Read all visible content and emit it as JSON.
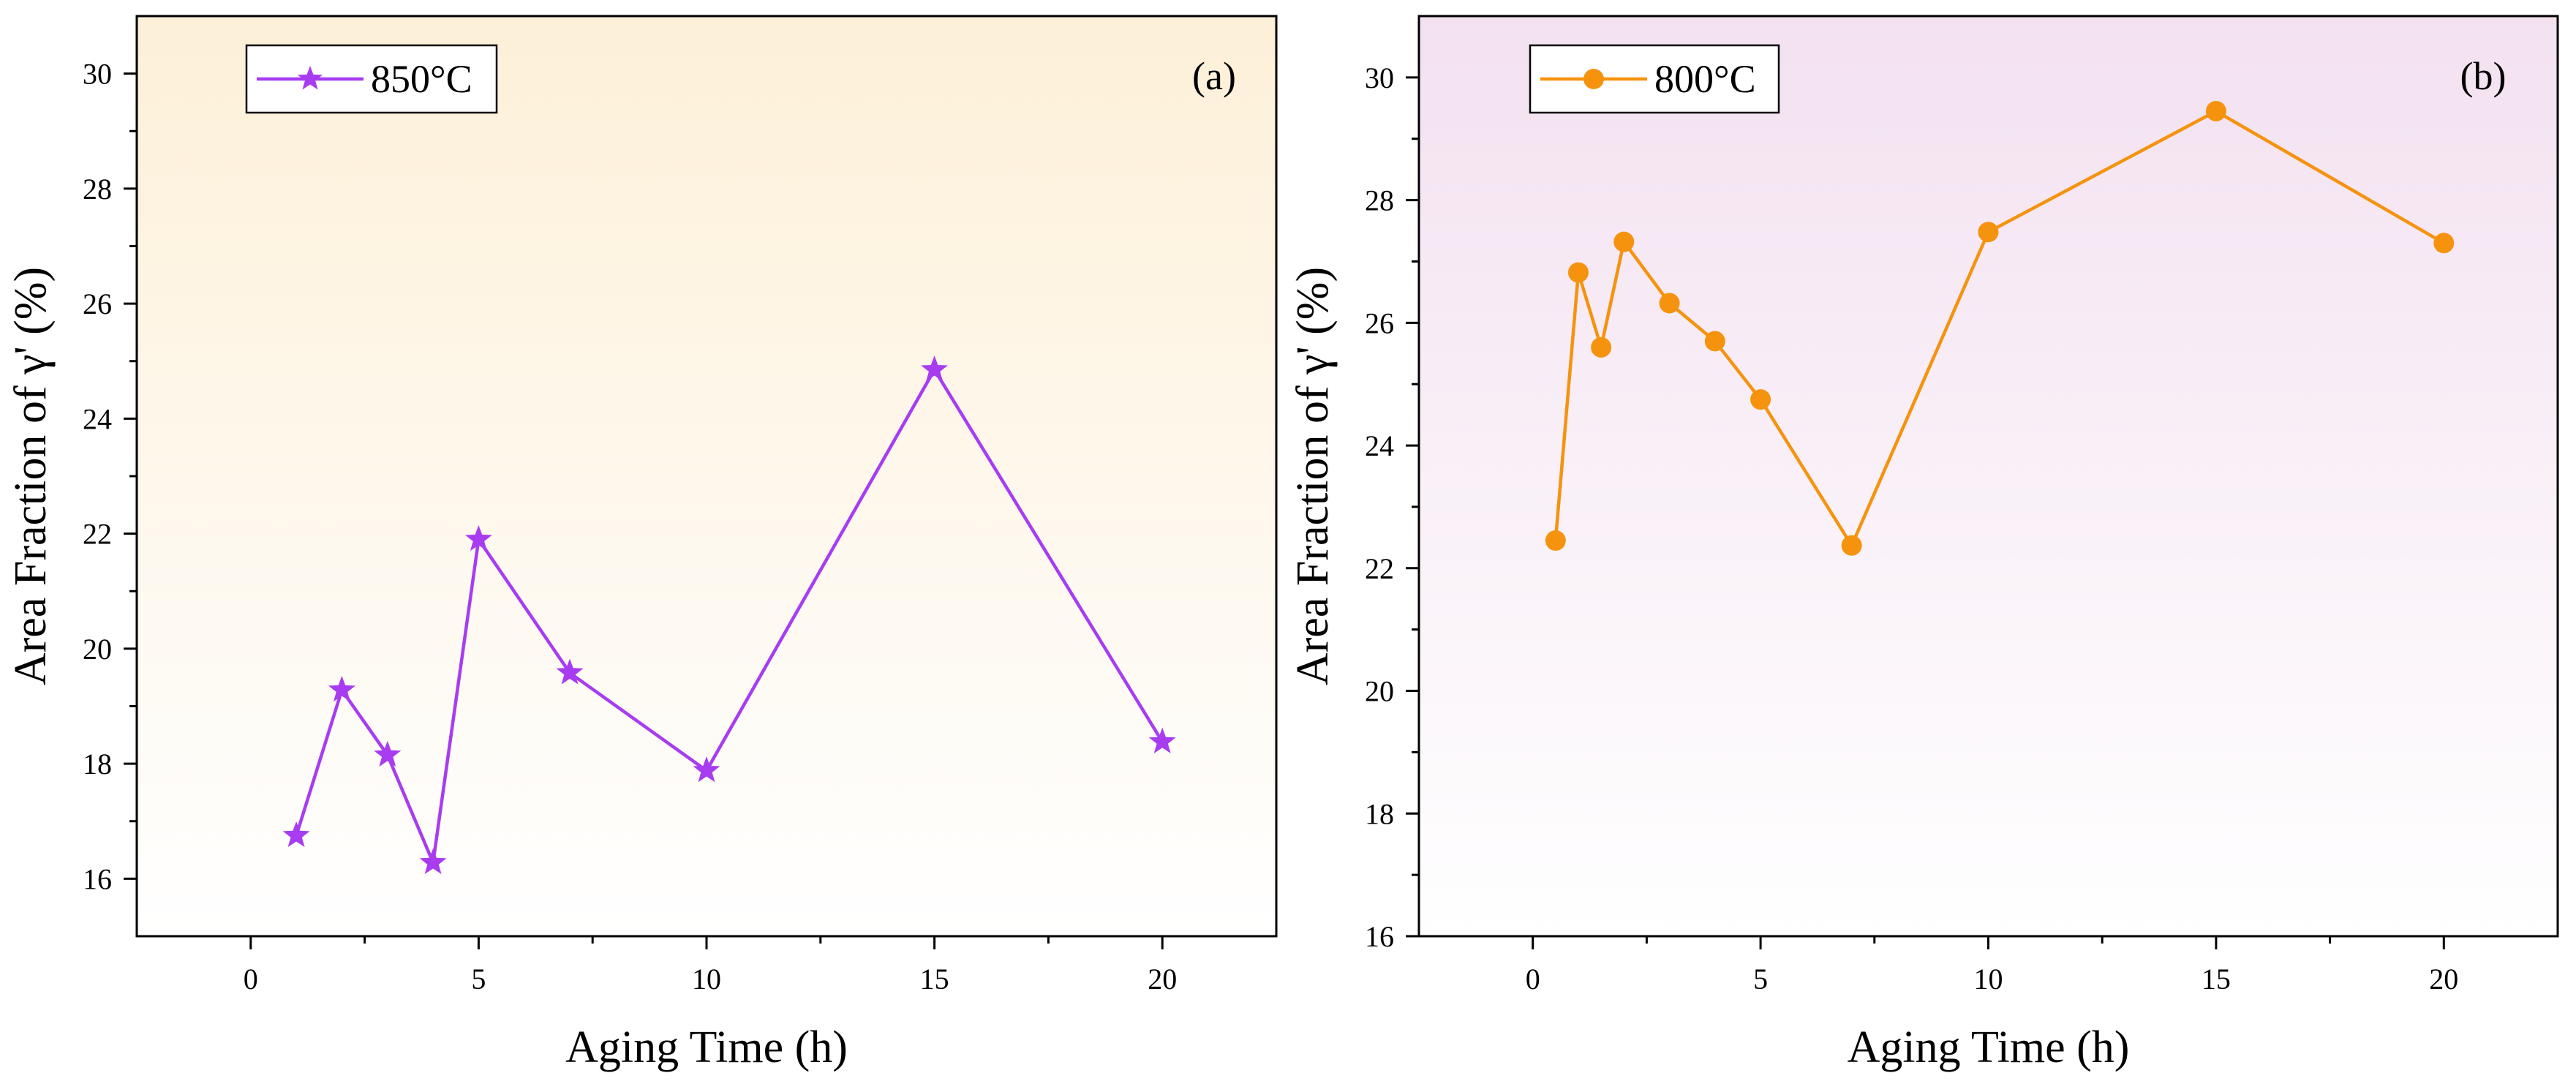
{
  "chart_data": [
    {
      "type": "line",
      "panel_label": "(a)",
      "title": "",
      "xlabel": "Aging Time (h)",
      "ylabel": "Area Fraction of γ' (%)",
      "xlim": [
        -2.5,
        22.5
      ],
      "ylim": [
        15,
        31
      ],
      "xticks": [
        0,
        5,
        10,
        15,
        20
      ],
      "yticks": [
        16,
        18,
        20,
        22,
        24,
        26,
        28,
        30
      ],
      "legend_position": "top-left",
      "background_gradient": [
        "#fdf0d8",
        "#ffffff"
      ],
      "series": [
        {
          "name": "850°C",
          "color": "#a83cf0",
          "marker": "star",
          "x": [
            1,
            2,
            3,
            4,
            5,
            7,
            10,
            15,
            20
          ],
          "y": [
            16.75,
            19.28,
            18.15,
            16.28,
            21.9,
            19.58,
            17.88,
            24.85,
            18.38
          ]
        }
      ]
    },
    {
      "type": "line",
      "panel_label": "(b)",
      "title": "",
      "xlabel": "Aging Time (h)",
      "ylabel": "Area Fraction of γ' (%)",
      "xlim": [
        -2.5,
        22.5
      ],
      "ylim": [
        16,
        31
      ],
      "xticks": [
        0,
        5,
        10,
        15,
        20
      ],
      "yticks": [
        16,
        18,
        20,
        22,
        24,
        26,
        28,
        30
      ],
      "legend_position": "top-left",
      "background_gradient": [
        "#f3e1f0",
        "#ffffff"
      ],
      "series": [
        {
          "name": "800°C",
          "color": "#f5930f",
          "marker": "circle",
          "x": [
            0.5,
            1,
            1.5,
            2,
            3,
            4,
            5,
            7,
            10,
            15,
            20
          ],
          "y": [
            22.45,
            26.82,
            25.6,
            27.32,
            26.32,
            25.7,
            24.75,
            22.37,
            27.48,
            29.45,
            27.3
          ]
        }
      ]
    }
  ]
}
